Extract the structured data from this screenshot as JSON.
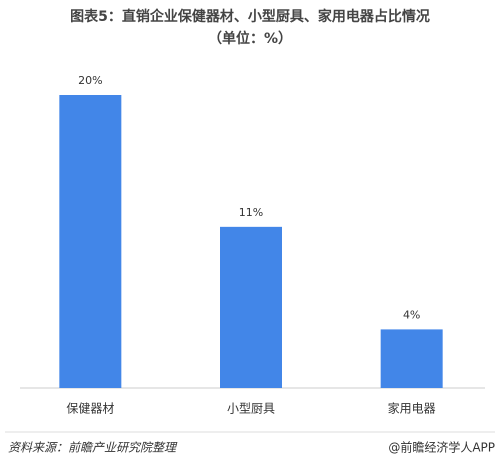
{
  "chart_data": {
    "type": "bar",
    "title": "图表5：直销企业保健器材、小型厨具、家用电器占比情况",
    "subtitle": "（单位：%）",
    "categories": [
      "保健器材",
      "小型厨具",
      "家用电器"
    ],
    "values": [
      20,
      11,
      4
    ],
    "value_labels": [
      "20%",
      "11%",
      "4%"
    ],
    "color": "#4286e8",
    "source": "资料来源：前瞻产业研究院整理",
    "credit": "@前瞻经济学人APP"
  }
}
